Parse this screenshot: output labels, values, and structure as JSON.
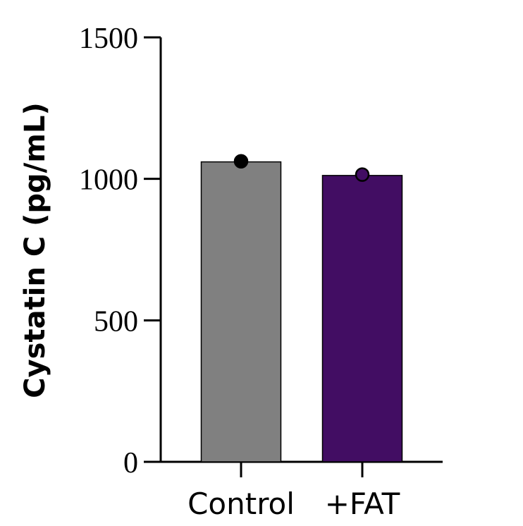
{
  "chart_data": {
    "type": "bar",
    "title": "",
    "xlabel": "",
    "ylabel": "Cystatin C (pg/mL)",
    "ylim": [
      0,
      1500
    ],
    "yticks": [
      0,
      500,
      1000,
      1500
    ],
    "categories": [
      "Control",
      "+FAT"
    ],
    "values": [
      1060,
      1012
    ],
    "points": [
      1062,
      1015
    ],
    "bar_colors": [
      "#808080",
      "#420d63"
    ],
    "point_colors": [
      "#000000",
      "#420d63"
    ],
    "grid": false,
    "legend": "none"
  }
}
